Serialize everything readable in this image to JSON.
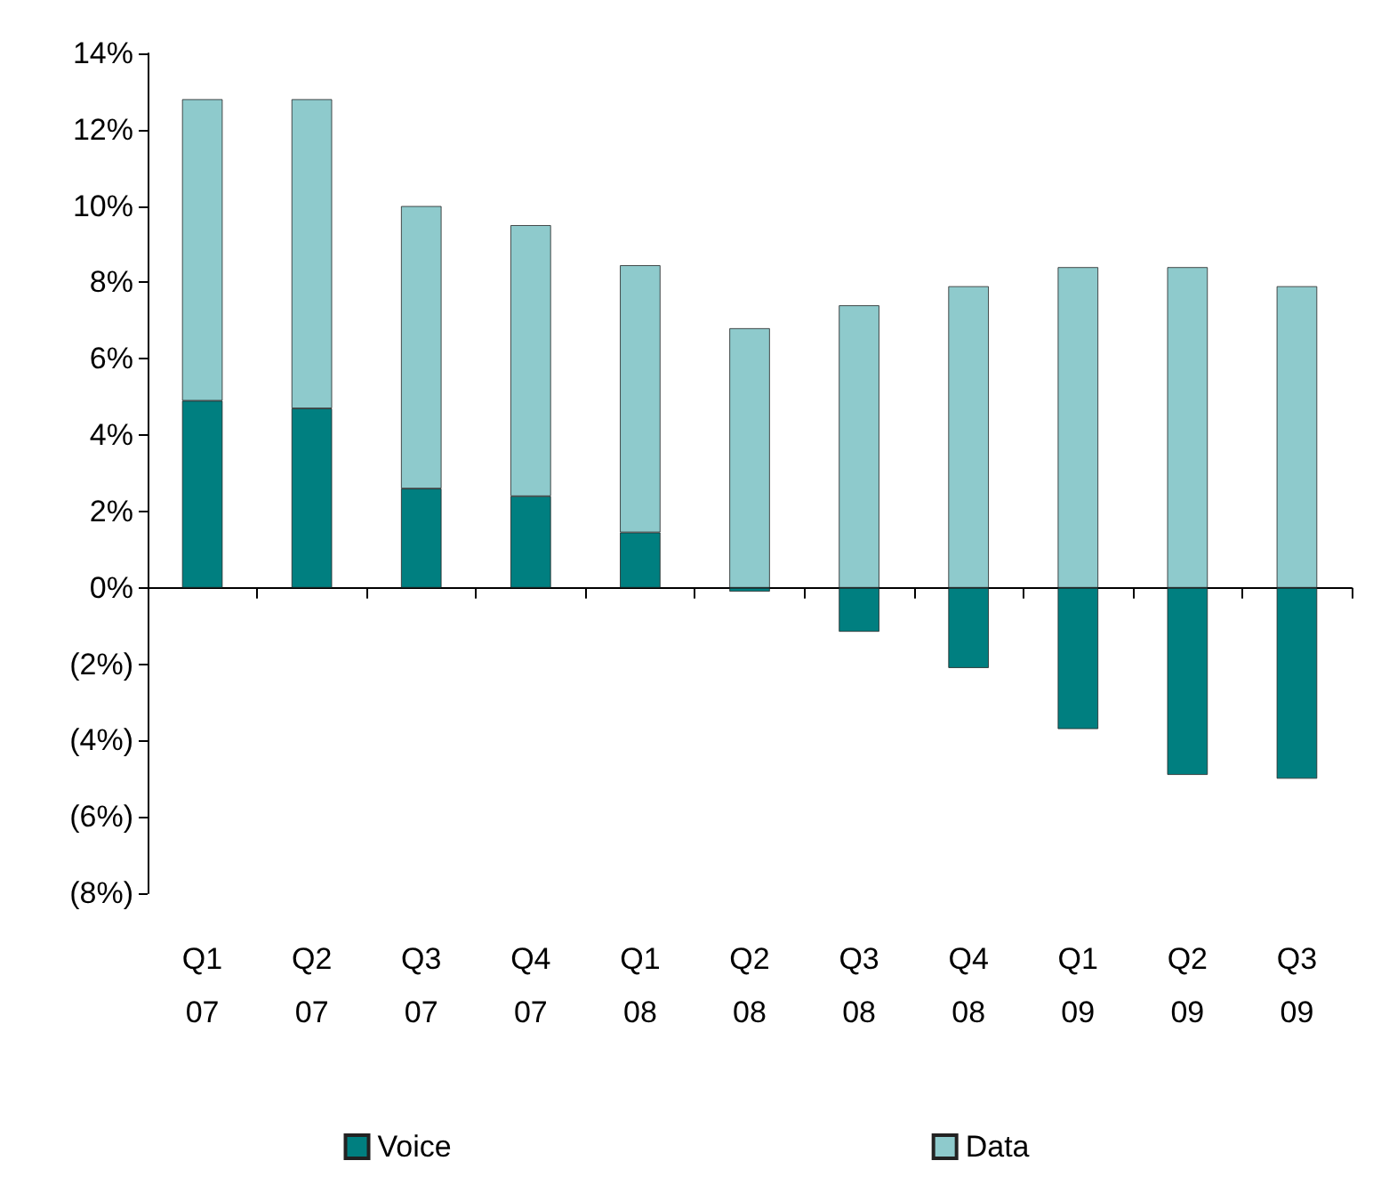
{
  "chart_data": {
    "type": "bar",
    "stacked": true,
    "categories": [
      "Q1\n07",
      "Q2\n07",
      "Q3\n07",
      "Q4\n07",
      "Q1\n08",
      "Q2\n08",
      "Q3\n08",
      "Q4\n08",
      "Q1\n09",
      "Q2\n09",
      "Q3\n09"
    ],
    "series": [
      {
        "name": "Voice",
        "color": "#007f80",
        "values": [
          4.9,
          4.7,
          2.6,
          2.4,
          1.45,
          -0.1,
          -1.15,
          -2.1,
          -3.7,
          -4.9,
          -5.0
        ]
      },
      {
        "name": "Data",
        "color": "#8ecacc",
        "values": [
          7.9,
          8.1,
          7.4,
          7.1,
          7.0,
          6.8,
          7.4,
          7.9,
          8.4,
          8.4,
          7.9
        ]
      }
    ],
    "ylim": [
      -8,
      14
    ],
    "yticks": [
      {
        "value": -8,
        "label": "(8%)"
      },
      {
        "value": -6,
        "label": "(6%)"
      },
      {
        "value": -4,
        "label": "(4%)"
      },
      {
        "value": -2,
        "label": "(2%)"
      },
      {
        "value": 0,
        "label": "0%"
      },
      {
        "value": 2,
        "label": "2%"
      },
      {
        "value": 4,
        "label": "4%"
      },
      {
        "value": 6,
        "label": "6%"
      },
      {
        "value": 8,
        "label": "8%"
      },
      {
        "value": 10,
        "label": "10%"
      },
      {
        "value": 12,
        "label": "12%"
      },
      {
        "value": 14,
        "label": "14%"
      }
    ],
    "legend": "bottom"
  }
}
